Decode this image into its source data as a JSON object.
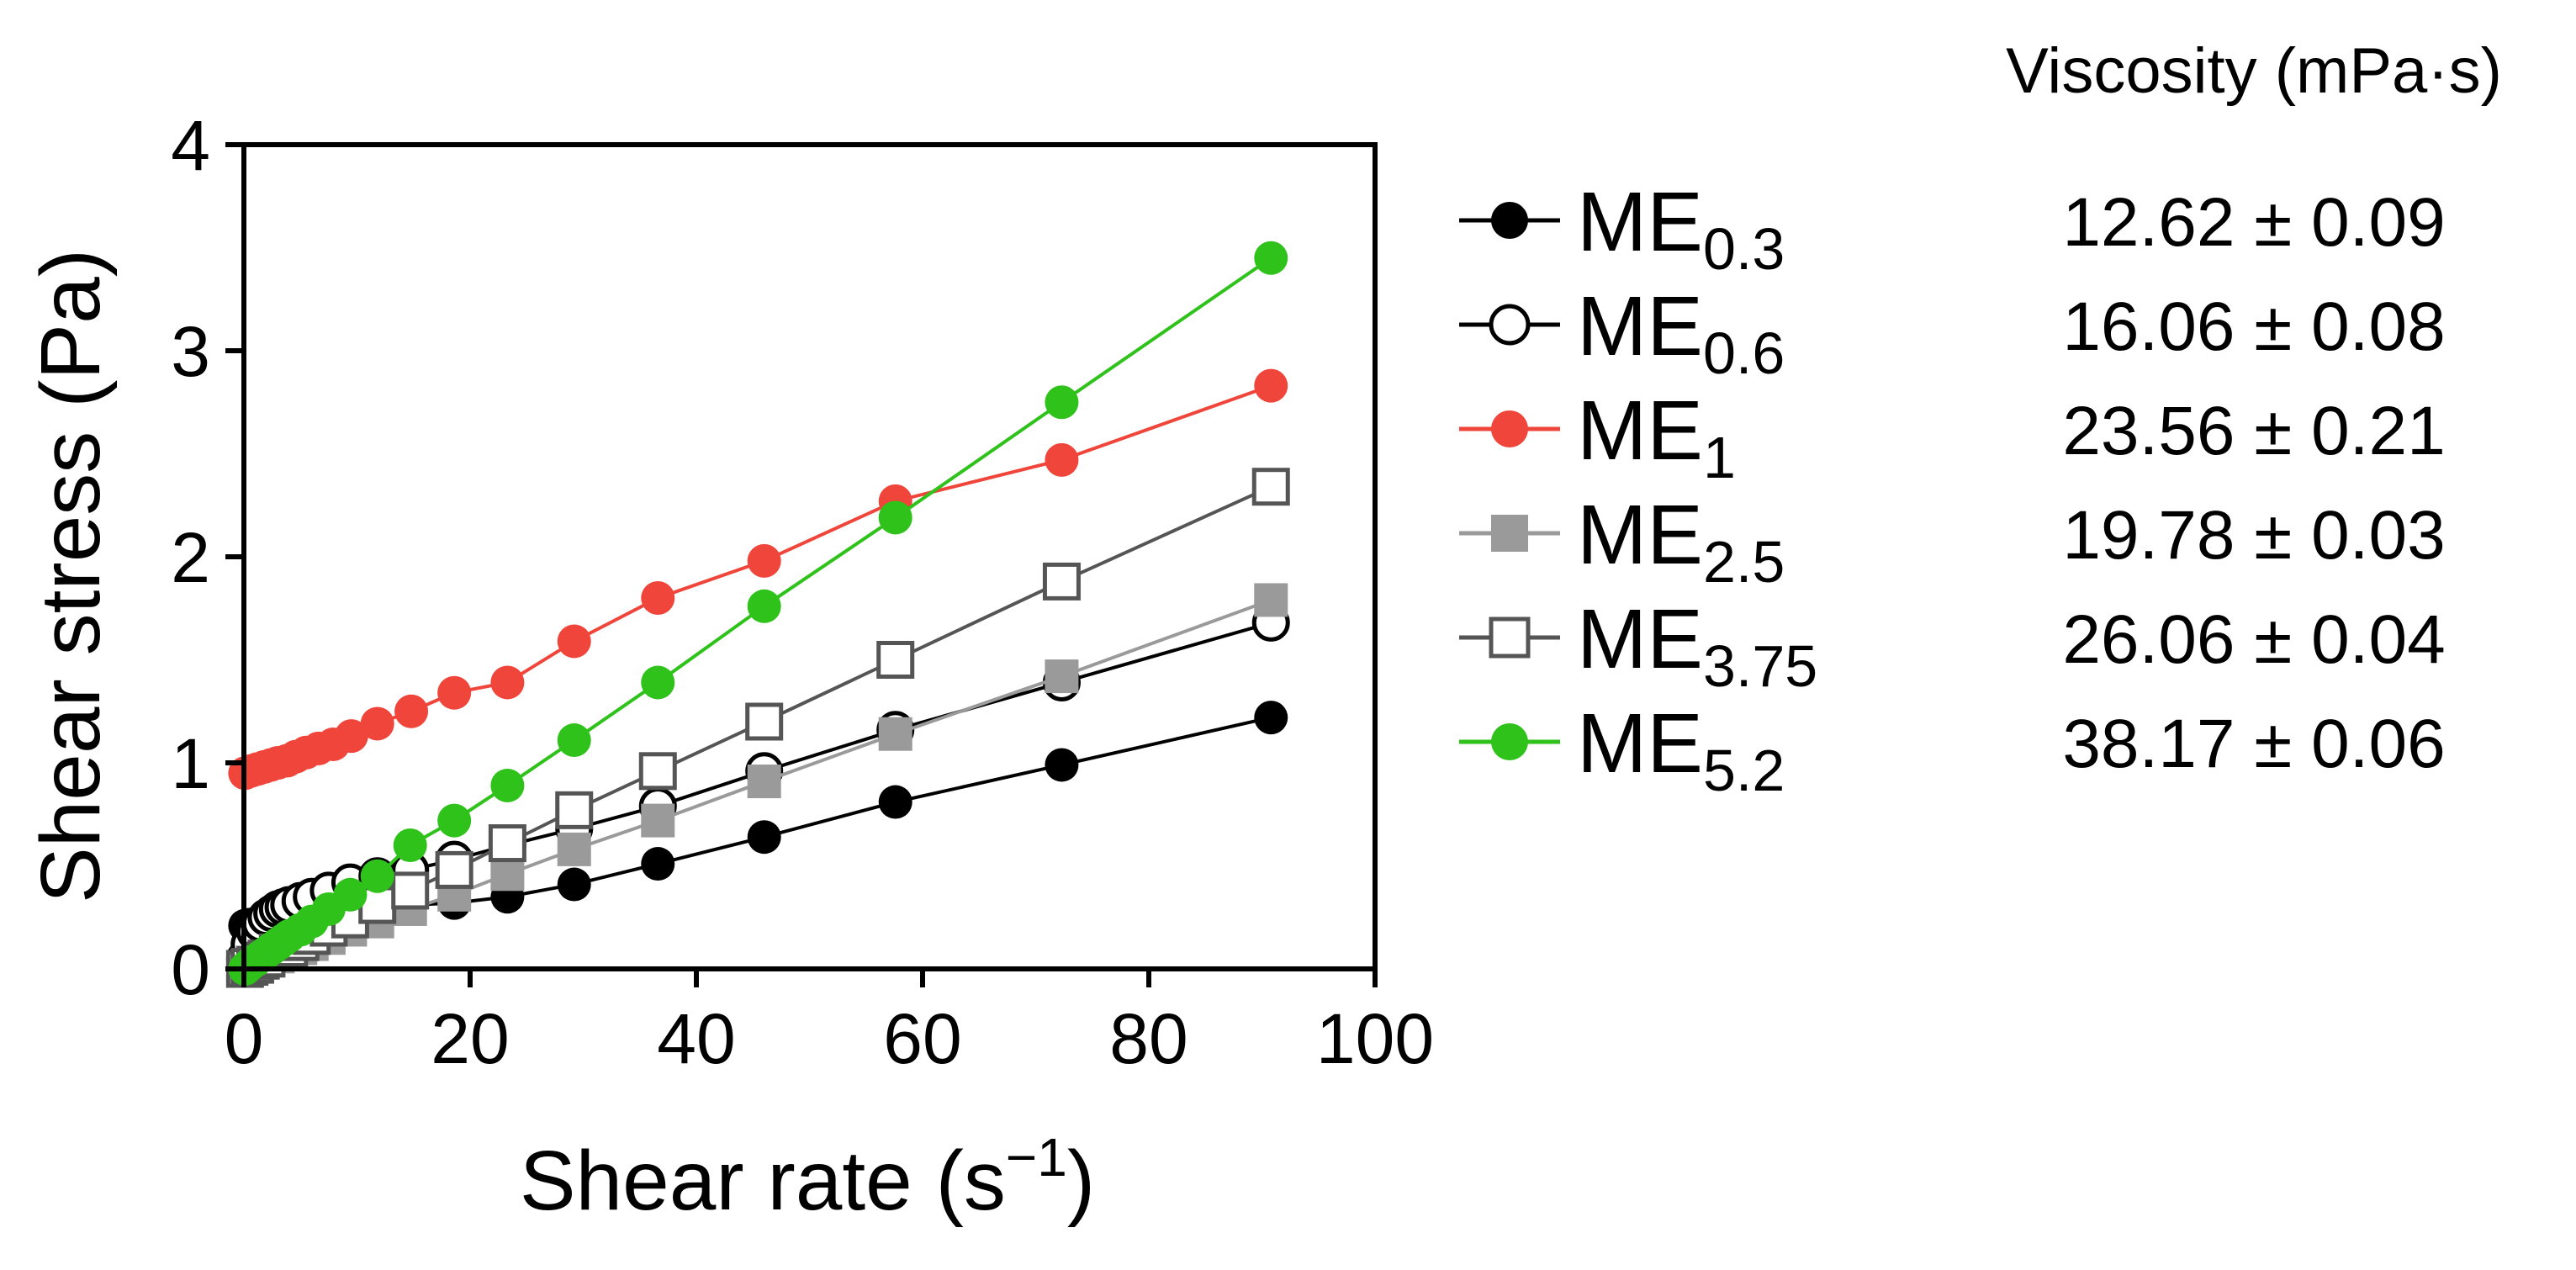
{
  "chart_data": {
    "type": "line",
    "xlabel": "Shear rate (s",
    "xlabel_sup": "−1",
    "xlabel_close": ")",
    "ylabel": "Shear stress (Pa)",
    "xlim": [
      0,
      100
    ],
    "ylim": [
      0,
      4
    ],
    "xticks": [
      "0",
      "20",
      "40",
      "60",
      "80",
      "100"
    ],
    "yticks": [
      "0",
      "1",
      "2",
      "3",
      "4"
    ],
    "grid": false,
    "legend_position": "right",
    "side_table_header": "Viscosity (mPa·s)",
    "series": [
      {
        "name": "ME",
        "sub": "0.3",
        "viscosity": "12.62 ± 0.09",
        "color": "#000000",
        "marker": "circle",
        "fill": "#000000",
        "points": [
          [
            0.1,
            0.21
          ],
          [
            0.5,
            0.215
          ],
          [
            1,
            0.22
          ],
          [
            1.5,
            0.225
          ],
          [
            2,
            0.23
          ],
          [
            2.5,
            0.235
          ],
          [
            3,
            0.24
          ],
          [
            3.5,
            0.245
          ],
          [
            4,
            0.25
          ],
          [
            5,
            0.26
          ],
          [
            6,
            0.27
          ],
          [
            7.5,
            0.28
          ],
          [
            9,
            0.29
          ],
          [
            11.5,
            0.3
          ],
          [
            14.7,
            0.31
          ],
          [
            18.6,
            0.32
          ],
          [
            23.3,
            0.35
          ],
          [
            29.2,
            0.41
          ],
          [
            36.6,
            0.51
          ],
          [
            46,
            0.64
          ],
          [
            57.6,
            0.81
          ],
          [
            72.3,
            0.99
          ],
          [
            90.8,
            1.22
          ]
        ]
      },
      {
        "name": "ME",
        "sub": "0.6",
        "viscosity": "16.06 ± 0.08",
        "color": "#000000",
        "marker": "circle",
        "fill": "#ffffff",
        "points": [
          [
            0.1,
            0.05
          ],
          [
            0.5,
            0.12
          ],
          [
            1,
            0.18
          ],
          [
            1.5,
            0.22
          ],
          [
            2,
            0.25
          ],
          [
            2.5,
            0.27
          ],
          [
            3,
            0.29
          ],
          [
            3.5,
            0.3
          ],
          [
            4,
            0.31
          ],
          [
            5,
            0.33
          ],
          [
            6,
            0.35
          ],
          [
            7.5,
            0.38
          ],
          [
            9.4,
            0.42
          ],
          [
            11.8,
            0.45
          ],
          [
            14.7,
            0.48
          ],
          [
            18.6,
            0.53
          ],
          [
            23.3,
            0.6
          ],
          [
            29.2,
            0.68
          ],
          [
            36.6,
            0.79
          ],
          [
            46,
            0.96
          ],
          [
            57.6,
            1.16
          ],
          [
            72.3,
            1.39
          ],
          [
            90.8,
            1.68
          ]
        ]
      },
      {
        "name": "ME",
        "sub": "1",
        "viscosity": "23.56 ± 0.21",
        "color": "#f0453a",
        "marker": "circle",
        "fill": "#f0453a",
        "points": [
          [
            0.1,
            0.95
          ],
          [
            0.6,
            0.96
          ],
          [
            1.2,
            0.97
          ],
          [
            1.8,
            0.98
          ],
          [
            2.4,
            0.99
          ],
          [
            3,
            1.0
          ],
          [
            3.8,
            1.01
          ],
          [
            4.6,
            1.03
          ],
          [
            5.5,
            1.05
          ],
          [
            6.6,
            1.07
          ],
          [
            7.9,
            1.09
          ],
          [
            9.5,
            1.13
          ],
          [
            11.8,
            1.19
          ],
          [
            14.8,
            1.25
          ],
          [
            18.6,
            1.34
          ],
          [
            23.3,
            1.39
          ],
          [
            29.2,
            1.59
          ],
          [
            36.6,
            1.8
          ],
          [
            46,
            1.98
          ],
          [
            57.6,
            2.27
          ],
          [
            72.3,
            2.47
          ],
          [
            90.8,
            2.83
          ]
        ]
      },
      {
        "name": "ME",
        "sub": "2.5",
        "viscosity": "19.78 ± 0.03",
        "color": "#9a9a9a",
        "marker": "square",
        "fill": "#9a9a9a",
        "points": [
          [
            0.1,
            0.0
          ],
          [
            0.5,
            0.01
          ],
          [
            1,
            0.02
          ],
          [
            1.5,
            0.03
          ],
          [
            2,
            0.04
          ],
          [
            3,
            0.06
          ],
          [
            4,
            0.08
          ],
          [
            5,
            0.1
          ],
          [
            6,
            0.12
          ],
          [
            7.5,
            0.15
          ],
          [
            9.4,
            0.19
          ],
          [
            11.8,
            0.23
          ],
          [
            14.7,
            0.29
          ],
          [
            18.6,
            0.36
          ],
          [
            23.3,
            0.46
          ],
          [
            29.2,
            0.58
          ],
          [
            36.6,
            0.72
          ],
          [
            46,
            0.91
          ],
          [
            57.6,
            1.14
          ],
          [
            72.3,
            1.42
          ],
          [
            90.8,
            1.79
          ]
        ]
      },
      {
        "name": "ME",
        "sub": "3.75",
        "viscosity": "26.06 ± 0.04",
        "color": "#555555",
        "marker": "square",
        "fill": "#ffffff",
        "points": [
          [
            0.1,
            0.0
          ],
          [
            0.5,
            0.01
          ],
          [
            1,
            0.02
          ],
          [
            1.5,
            0.04
          ],
          [
            2,
            0.05
          ],
          [
            3,
            0.08
          ],
          [
            4,
            0.1
          ],
          [
            5,
            0.13
          ],
          [
            6,
            0.16
          ],
          [
            7.5,
            0.2
          ],
          [
            9.4,
            0.24
          ],
          [
            11.8,
            0.31
          ],
          [
            14.7,
            0.38
          ],
          [
            18.6,
            0.48
          ],
          [
            23.3,
            0.61
          ],
          [
            29.2,
            0.77
          ],
          [
            36.6,
            0.96
          ],
          [
            46,
            1.2
          ],
          [
            57.6,
            1.5
          ],
          [
            72.3,
            1.88
          ],
          [
            90.8,
            2.34
          ]
        ]
      },
      {
        "name": "ME",
        "sub": "5.2",
        "viscosity": "38.17 ± 0.06",
        "color": "#2ec21b",
        "marker": "circle",
        "fill": "#2ec21b",
        "points": [
          [
            0.1,
            0.0
          ],
          [
            0.5,
            0.02
          ],
          [
            1,
            0.04
          ],
          [
            1.5,
            0.06
          ],
          [
            2,
            0.08
          ],
          [
            2.5,
            0.1
          ],
          [
            3,
            0.12
          ],
          [
            3.5,
            0.14
          ],
          [
            4,
            0.16
          ],
          [
            5,
            0.19
          ],
          [
            6,
            0.23
          ],
          [
            7.5,
            0.29
          ],
          [
            9.4,
            0.36
          ],
          [
            11.8,
            0.45
          ],
          [
            14.7,
            0.6
          ],
          [
            18.6,
            0.72
          ],
          [
            23.3,
            0.89
          ],
          [
            29.2,
            1.11
          ],
          [
            36.6,
            1.39
          ],
          [
            46,
            1.76
          ],
          [
            57.6,
            2.19
          ],
          [
            72.3,
            2.75
          ],
          [
            90.8,
            3.45
          ]
        ]
      }
    ]
  }
}
